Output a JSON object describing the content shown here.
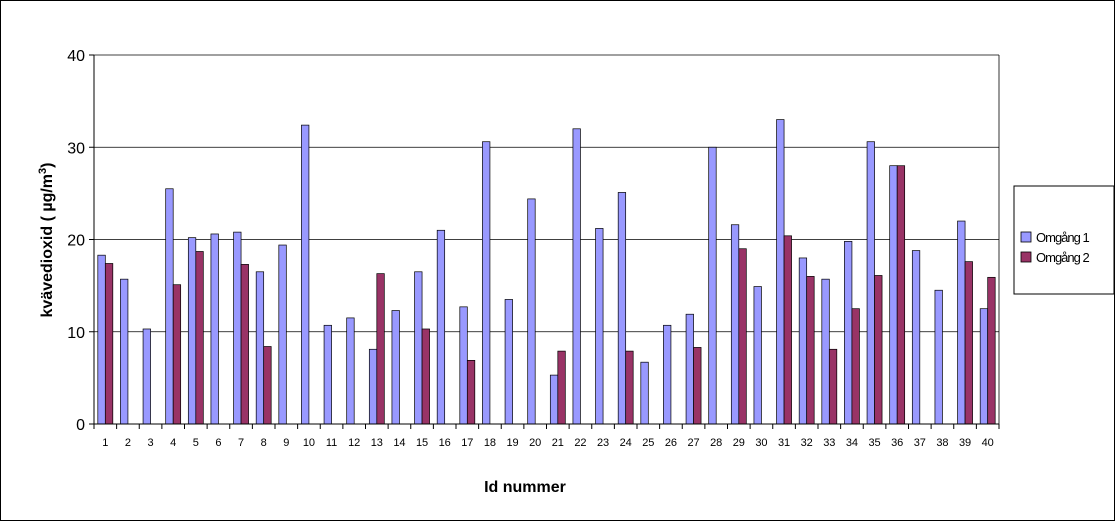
{
  "chart_data": {
    "type": "bar",
    "title": "",
    "xlabel": "Id nummer",
    "ylabel_main": "kvävedioxid ( µg/m",
    "ylabel_sup": "3",
    "ylabel_end": ")",
    "ylim": [
      0,
      40
    ],
    "yticks": [
      "0",
      "10",
      "20",
      "30",
      "40"
    ],
    "grid": true,
    "legend_position": "right",
    "categories": [
      "1",
      "2",
      "3",
      "4",
      "5",
      "6",
      "7",
      "8",
      "9",
      "10",
      "11",
      "12",
      "13",
      "14",
      "15",
      "16",
      "17",
      "18",
      "19",
      "20",
      "21",
      "22",
      "23",
      "24",
      "25",
      "26",
      "27",
      "28",
      "29",
      "30",
      "31",
      "32",
      "33",
      "34",
      "35",
      "36",
      "37",
      "38",
      "39",
      "40"
    ],
    "series": [
      {
        "name": "Omgång 1",
        "color": "#9999ff",
        "values": [
          18.3,
          15.7,
          10.3,
          25.5,
          20.2,
          20.6,
          20.8,
          16.5,
          19.4,
          32.4,
          10.7,
          11.5,
          8.1,
          12.3,
          16.5,
          21.0,
          12.7,
          30.6,
          13.5,
          24.4,
          5.3,
          32.0,
          21.2,
          25.1,
          6.7,
          10.7,
          11.9,
          30.0,
          21.6,
          14.9,
          33.0,
          18.0,
          15.7,
          19.8,
          30.6,
          28.0,
          18.8,
          14.5,
          22.0,
          12.5
        ]
      },
      {
        "name": "Omgång 2",
        "color": "#993366",
        "values": [
          17.4,
          null,
          null,
          15.1,
          18.7,
          null,
          17.3,
          8.4,
          null,
          null,
          null,
          null,
          16.3,
          null,
          10.3,
          null,
          6.9,
          null,
          null,
          null,
          7.9,
          null,
          null,
          7.9,
          null,
          null,
          8.3,
          null,
          19.0,
          null,
          20.4,
          16.0,
          8.1,
          12.5,
          16.1,
          28.0,
          null,
          null,
          17.6,
          15.9
        ]
      }
    ]
  }
}
